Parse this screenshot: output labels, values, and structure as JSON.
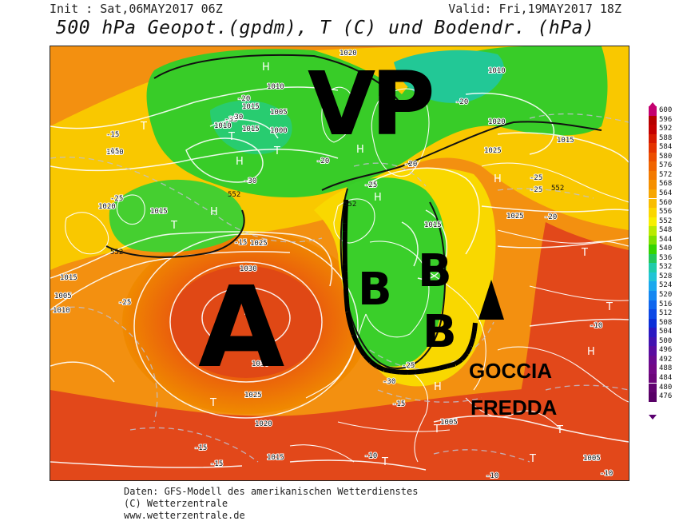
{
  "header": {
    "init": "Init : Sat,06MAY2017 06Z",
    "valid": "Valid: Fri,19MAY2017 18Z",
    "title": "500 hPa Geopot.(gpdm), T (C) und Bodendr. (hPa)"
  },
  "annotations": {
    "vp": "VP",
    "high": "A",
    "low_1": "B",
    "low_2": "B",
    "low_3": "B",
    "cold_drop_line1": "GOCCIA",
    "cold_drop_line2": "FREDDA"
  },
  "map_labels": {
    "pressure": [
      "1020",
      "1010",
      "1015",
      "1005",
      "1000",
      "1010",
      "1015",
      "1010",
      "1020",
      "1015",
      "1025",
      "1030",
      "1030",
      "1025",
      "1020",
      "1015",
      "1005",
      "1015",
      "1010",
      "1020",
      "1025",
      "1025",
      "1015",
      "1005",
      "1015",
      "1005",
      "1010"
    ],
    "temperature": [
      "-15",
      "-15",
      "-20",
      "-25",
      "-30",
      "-35",
      "-25",
      "-20",
      "-25",
      "-20",
      "-25",
      "-30",
      "-15",
      "-20",
      "-25",
      "-20",
      "-30",
      "-25",
      "-15",
      "-15",
      "-15",
      "-10",
      "-10",
      "-10",
      "-10"
    ],
    "geopotential": [
      "552",
      "552",
      "552",
      "552"
    ],
    "highs": [
      "H",
      "H",
      "H",
      "H",
      "H",
      "H",
      "H",
      "H",
      "H",
      "H"
    ],
    "lows": [
      "T",
      "T",
      "T",
      "T",
      "T",
      "T",
      "T",
      "T",
      "T",
      "T",
      "T"
    ]
  },
  "legend": {
    "values": [
      "600",
      "596",
      "592",
      "588",
      "584",
      "580",
      "576",
      "572",
      "568",
      "564",
      "560",
      "556",
      "552",
      "548",
      "544",
      "540",
      "536",
      "532",
      "528",
      "524",
      "520",
      "516",
      "512",
      "508",
      "504",
      "500",
      "496",
      "492",
      "488",
      "484",
      "480",
      "476"
    ],
    "colors": [
      "#c40070",
      "#b60000",
      "#c40000",
      "#d61a00",
      "#e43300",
      "#ec4d00",
      "#f06400",
      "#f37a00",
      "#f59000",
      "#f7a600",
      "#f9bd00",
      "#fbd700",
      "#f7ef00",
      "#b9ea00",
      "#7de000",
      "#34d400",
      "#22c85a",
      "#1eccaa",
      "#21c4d6",
      "#1aa8ee",
      "#1488f2",
      "#0f66ee",
      "#0c48e6",
      "#0b2ed8",
      "#2a18c2",
      "#4212b0",
      "#5a0ca0",
      "#6a0a90",
      "#720886",
      "#6c057a",
      "#610370",
      "#580066"
    ]
  },
  "footer": {
    "line1": "Daten: GFS-Modell des amerikanischen Wetterdienstes",
    "line2": "(C) Wetterzentrale",
    "line3": "www.wetterzentrale.de"
  }
}
